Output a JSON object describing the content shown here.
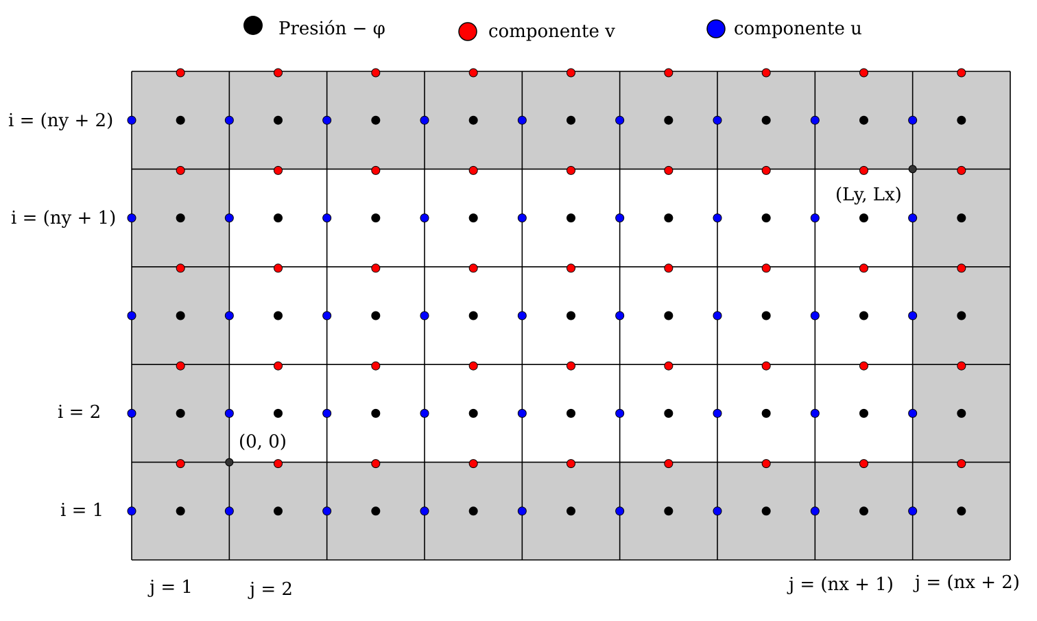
{
  "legend": {
    "pressure": "Presión − φ",
    "v_component": "componente v",
    "u_component": "componente u"
  },
  "row_labels": {
    "top": "i = (ny + 2)",
    "second": "i = (ny + 1)",
    "row2": "i = 2",
    "row1": "i = 1"
  },
  "col_labels": {
    "col1": "j = 1",
    "col2": "j = 2",
    "colnx1": "j = (nx + 1)",
    "colnx2": "j = (nx + 2)"
  },
  "points": {
    "origin": "(0, 0)",
    "corner": "(Ly, Lx)"
  },
  "grid": {
    "columns": 9,
    "rows": 5
  },
  "colors": {
    "pressure": "#000000",
    "v_component": "#ff0000",
    "u_component": "#0000ff",
    "ghost_cells": "#cccccc",
    "grid_lines": "#000000"
  }
}
